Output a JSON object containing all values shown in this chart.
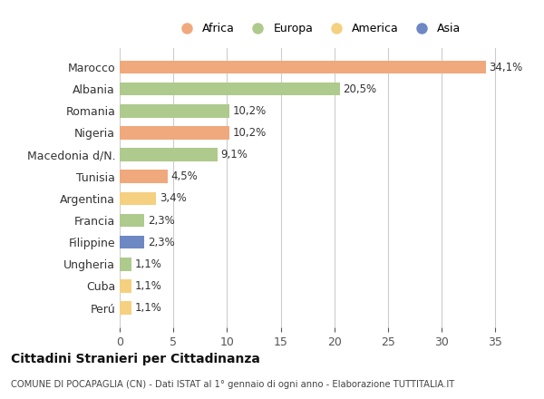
{
  "categories": [
    "Marocco",
    "Albania",
    "Romania",
    "Nigeria",
    "Macedonia d/N.",
    "Tunisia",
    "Argentina",
    "Francia",
    "Filippine",
    "Ungheria",
    "Cuba",
    "Perú"
  ],
  "values": [
    34.1,
    20.5,
    10.2,
    10.2,
    9.1,
    4.5,
    3.4,
    2.3,
    2.3,
    1.1,
    1.1,
    1.1
  ],
  "labels": [
    "34,1%",
    "20,5%",
    "10,2%",
    "10,2%",
    "9,1%",
    "4,5%",
    "3,4%",
    "2,3%",
    "2,3%",
    "1,1%",
    "1,1%",
    "1,1%"
  ],
  "colors": [
    "#F0A97C",
    "#AECA8C",
    "#AECA8C",
    "#F0A97C",
    "#AECA8C",
    "#F0A97C",
    "#F5D080",
    "#AECA8C",
    "#6E88C4",
    "#AECA8C",
    "#F5D080",
    "#F5D080"
  ],
  "legend_labels": [
    "Africa",
    "Europa",
    "America",
    "Asia"
  ],
  "legend_colors": [
    "#F0A97C",
    "#AECA8C",
    "#F5D080",
    "#6E88C4"
  ],
  "title": "Cittadini Stranieri per Cittadinanza",
  "subtitle": "COMUNE DI POCAPAGLIA (CN) - Dati ISTAT al 1° gennaio di ogni anno - Elaborazione TUTTITALIA.IT",
  "xlim": [
    0,
    37
  ],
  "xticks": [
    0,
    5,
    10,
    15,
    20,
    25,
    30,
    35
  ],
  "bg_color": "#FFFFFF",
  "grid_color": "#CCCCCC",
  "bar_height": 0.6
}
